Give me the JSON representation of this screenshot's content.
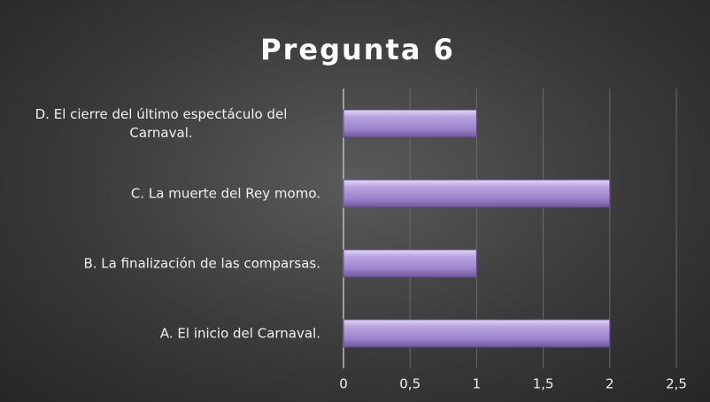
{
  "chart_data": {
    "type": "bar",
    "orientation": "horizontal",
    "title": "Pregunta 6",
    "categories": [
      "A. El inicio del Carnaval.",
      "B. La finalización de las comparsas.",
      "C. La muerte del Rey momo.",
      "D. El cierre del último espectáculo del Carnaval."
    ],
    "values": [
      2,
      1,
      2,
      1
    ],
    "color": "#a48ad0",
    "xlim": [
      0,
      2.5
    ],
    "xticks": [
      0,
      {
        "value": 0.5,
        "label": "0,5"
      },
      1,
      {
        "value": 1.5,
        "label": "1,5"
      },
      2,
      {
        "value": 2.5,
        "label": "2,5"
      }
    ],
    "grid": true
  }
}
